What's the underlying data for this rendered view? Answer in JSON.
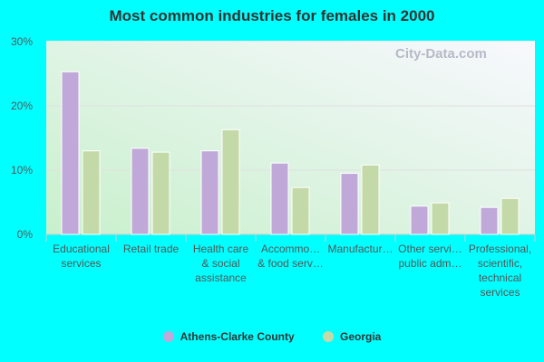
{
  "chart_data": {
    "type": "bar",
    "title": "Most common industries for females in 2000",
    "categories": [
      [
        "Educational",
        "services"
      ],
      [
        "Retail trade"
      ],
      [
        "Health care",
        "& social",
        "assistance"
      ],
      [
        "Accommo…",
        "& food serv…"
      ],
      [
        "Manufactur…"
      ],
      [
        "Other servi…",
        "public adm…"
      ],
      [
        "Professional,",
        "scientific,",
        "technical",
        "services"
      ]
    ],
    "series": [
      {
        "name": "Athens-Clarke County",
        "color": "#c0a8d8",
        "values": [
          25.3,
          13.4,
          13.0,
          11.1,
          9.5,
          4.4,
          4.2
        ]
      },
      {
        "name": "Georgia",
        "color": "#c4d9a8",
        "values": [
          13.0,
          12.8,
          16.3,
          7.3,
          10.8,
          4.9,
          5.6
        ]
      }
    ],
    "ylim": [
      0,
      30
    ],
    "yticks": [
      "0%",
      "10%",
      "20%",
      "30%"
    ],
    "grid": true,
    "legend": "bottom",
    "watermark": "City-Data.com"
  }
}
